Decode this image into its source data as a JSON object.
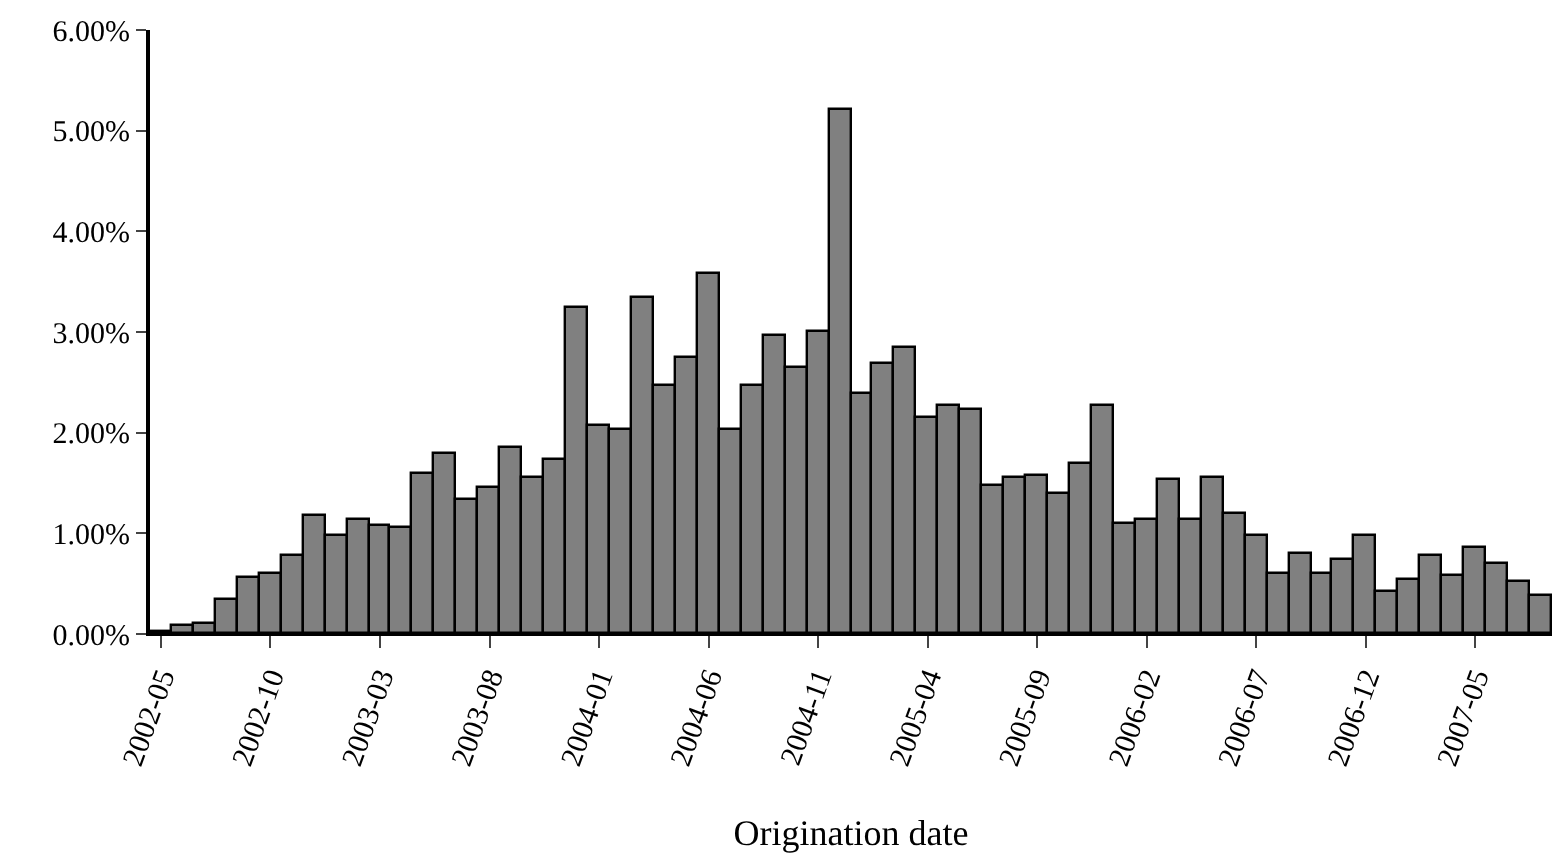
{
  "chart_data": {
    "type": "bar",
    "xlabel": "Origination date",
    "categories": [
      "2002-05",
      null,
      null,
      null,
      null,
      "2002-10",
      null,
      null,
      null,
      null,
      "2003-03",
      null,
      null,
      null,
      null,
      "2003-08",
      null,
      null,
      null,
      null,
      "2004-01",
      null,
      null,
      null,
      null,
      "2004-06",
      null,
      null,
      null,
      null,
      "2004-11",
      null,
      null,
      null,
      null,
      "2005-04",
      null,
      null,
      null,
      null,
      "2005-09",
      null,
      null,
      null,
      null,
      "2006-02",
      null,
      null,
      null,
      null,
      "2006-07",
      null,
      null,
      null,
      null,
      "2006-12",
      null,
      null,
      null,
      null,
      "2007-05",
      null,
      null,
      null
    ],
    "values": [
      0.02,
      0.07,
      0.1,
      0.33,
      0.55,
      0.6,
      0.78,
      1.17,
      0.97,
      1.13,
      1.07,
      1.05,
      1.58,
      1.78,
      1.34,
      1.45,
      1.84,
      1.55,
      1.72,
      3.24,
      2.06,
      2.03,
      3.33,
      2.47,
      2.74,
      3.57,
      2.03,
      2.47,
      2.97,
      2.65,
      3.0,
      5.2,
      2.38,
      2.68,
      2.85,
      2.15,
      2.26,
      2.23,
      1.47,
      1.55,
      1.57,
      1.4,
      1.69,
      2.27,
      1.1,
      1.13,
      1.52,
      1.13,
      1.55,
      1.19,
      0.98,
      0.6,
      0.8,
      0.6,
      0.74,
      0.98,
      0.41,
      0.53,
      0.77,
      0.57,
      0.86,
      0.69,
      0.51,
      0.38
    ],
    "color": "#808080",
    "ylim": [
      0,
      6
    ],
    "yticks": [
      {
        "value": 0,
        "label": "0.00%"
      },
      {
        "value": 1,
        "label": "1.00%"
      },
      {
        "value": 2,
        "label": "2.00%"
      },
      {
        "value": 3,
        "label": "3.00%"
      },
      {
        "value": 4,
        "label": "4.00%"
      },
      {
        "value": 5,
        "label": "5.00%"
      },
      {
        "value": 6,
        "label": "6.00%"
      }
    ],
    "grid": false
  }
}
